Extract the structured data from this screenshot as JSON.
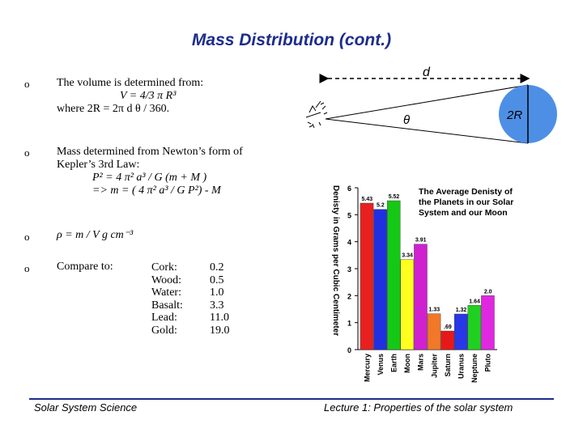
{
  "title": "Mass Distribution (cont.)",
  "bullets": {
    "volume": {
      "line1": "The volume is determined from:",
      "line2": "V = 4/3 π R³",
      "line3": "where 2R = 2π d θ / 360."
    },
    "mass": {
      "line1": "Mass determined from Newton’s form of",
      "line2": "Kepler’s 3rd Law:",
      "line3": "P² = 4 π² a³ / G (m + M )",
      "line4": "=> m = ( 4 π² a³ / G P²) - M"
    },
    "density": "ρ = m / V  g cm⁻³",
    "compare_label": "Compare to:",
    "materials": [
      "Cork:",
      "Wood:",
      "Water:",
      "Basalt:",
      "Lead:",
      "Gold:"
    ],
    "densities": [
      "0.2",
      "0.5",
      "1.0",
      "3.3",
      "11.0",
      "19.0"
    ]
  },
  "diagram": {
    "distance_label": "d",
    "angle_label": "θ",
    "diameter_label": "2R"
  },
  "chart_data": {
    "type": "bar",
    "title": "The Average Denisty of the Planets in our Solar System and our Moon",
    "ylabel": "Denisty in Grams per Cubic Centimeter",
    "ylim": [
      0,
      6
    ],
    "yticks": [
      "0",
      "1",
      "2",
      "3",
      "4",
      "5",
      "6"
    ],
    "categories": [
      "Mercury",
      "Venus",
      "Earth",
      "Moon",
      "Mars",
      "Jupiter",
      "Saturn",
      "Uranus",
      "Neptune",
      "Pluto"
    ],
    "values": [
      5.43,
      5.2,
      5.52,
      3.34,
      3.91,
      1.33,
      0.69,
      1.32,
      1.64,
      2.0
    ],
    "value_labels": [
      "5.43",
      "5.2",
      "5.52",
      "3.34",
      "3.91",
      "1.33",
      ".69",
      "1.32",
      "1.64",
      "2.0"
    ],
    "colors": [
      "#e82020",
      "#2030e0",
      "#16c816",
      "#ffff20",
      "#d020d0",
      "#f07828",
      "#e81818",
      "#2838e8",
      "#20d020",
      "#e028e0"
    ]
  },
  "footer": {
    "left": "Solar System Science",
    "right": "Lecture 1: Properties of the solar system"
  }
}
